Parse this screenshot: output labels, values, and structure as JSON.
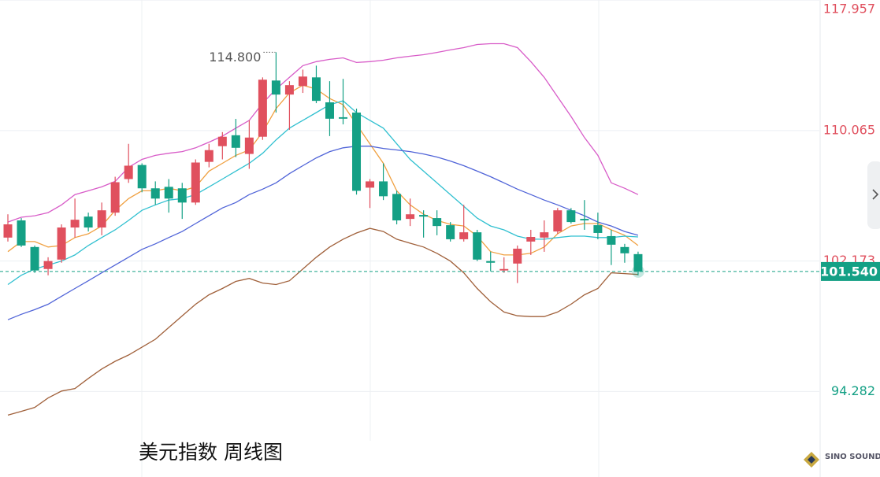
{
  "chart_data": {
    "type": "candlestick",
    "title": "美元指数 周线图",
    "logo": "SINO SOUND",
    "up_color": "#e0505e",
    "down_color": "#14a085",
    "ylim": [
      89.11,
      117.96
    ],
    "yticks": [
      117.957,
      110.065,
      102.173,
      94.282
    ],
    "grid": true,
    "last_price": {
      "value": 101.54,
      "label": "101.540"
    },
    "high_marker": {
      "value": 114.8,
      "label": "114.800"
    },
    "open": [
      103.59,
      104.63,
      103.02,
      101.69,
      102.26,
      104.2,
      104.86,
      104.2,
      105.1,
      107.13,
      107.98,
      106.57,
      106.66,
      106.57,
      105.71,
      108.17,
      109.12,
      109.78,
      108.65,
      109.69,
      113.09,
      112.24,
      112.76,
      113.28,
      111.77,
      110.87,
      111.15,
      106.61,
      106.99,
      106.23,
      104.72,
      104.96,
      104.77,
      104.34,
      103.49,
      103.91,
      102.17,
      101.6,
      102.02,
      103.35,
      103.59,
      103.96,
      105.24,
      104.72,
      104.34,
      103.68,
      103.02,
      102.59
    ],
    "high": [
      105.0,
      104.77,
      103.11,
      102.4,
      104.39,
      105.95,
      105.1,
      105.71,
      107.27,
      109.26,
      108.08,
      106.99,
      107.13,
      106.9,
      108.32,
      109.26,
      109.97,
      110.77,
      110.68,
      113.28,
      114.8,
      113.05,
      113.75,
      113.99,
      113.05,
      113.19,
      111.39,
      107.13,
      108.08,
      106.42,
      105.95,
      105.24,
      105.24,
      104.53,
      105.57,
      104.06,
      102.74,
      102.4,
      103.11,
      104.06,
      104.63,
      105.38,
      105.38,
      105.86,
      105.1,
      104.06,
      103.21,
      102.74
    ],
    "low": [
      103.35,
      103.02,
      101.46,
      101.31,
      102.07,
      103.59,
      103.96,
      103.73,
      104.91,
      106.9,
      106.33,
      105.57,
      105.1,
      104.72,
      105.57,
      107.84,
      108.32,
      108.46,
      107.75,
      109.5,
      111.15,
      110.11,
      112.34,
      111.72,
      109.73,
      110.44,
      106.19,
      105.38,
      105.86,
      104.39,
      104.29,
      103.59,
      103.73,
      103.35,
      103.35,
      102.17,
      101.55,
      101.46,
      100.84,
      102.54,
      102.73,
      103.82,
      104.44,
      104.06,
      103.49,
      101.93,
      102.07,
      101.31
    ],
    "close": [
      104.39,
      103.11,
      101.6,
      102.17,
      104.2,
      104.67,
      104.2,
      105.24,
      106.94,
      107.94,
      106.57,
      105.95,
      105.95,
      105.71,
      108.13,
      108.88,
      109.69,
      109.02,
      109.64,
      113.14,
      112.24,
      112.81,
      113.33,
      111.86,
      110.78,
      110.78,
      106.42,
      106.99,
      106.09,
      104.63,
      105.0,
      104.86,
      104.29,
      103.49,
      103.91,
      102.26,
      102.07,
      101.69,
      102.92,
      103.63,
      103.91,
      105.24,
      104.53,
      104.63,
      103.87,
      103.16,
      102.64,
      101.54
    ],
    "series": [
      {
        "color": "#f0a040",
        "values": [
          102.74,
          103.35,
          103.35,
          103.02,
          103.11,
          103.59,
          103.82,
          104.29,
          105.24,
          105.95,
          106.42,
          106.42,
          106.57,
          106.42,
          106.66,
          107.61,
          108.08,
          108.56,
          108.89,
          109.97,
          111.39,
          112.34,
          112.81,
          112.57,
          112.0,
          111.63,
          110.44,
          109.26,
          108.08,
          106.42,
          105.57,
          105.0,
          104.63,
          104.39,
          104.29,
          103.68,
          102.74,
          102.54,
          102.54,
          102.64,
          103.02,
          103.82,
          104.29,
          104.44,
          104.44,
          104.06,
          103.73,
          103.11
        ]
      },
      {
        "color": "#30c0d0",
        "values": [
          100.75,
          101.31,
          101.69,
          101.93,
          102.17,
          102.54,
          103.11,
          103.59,
          104.06,
          104.63,
          105.24,
          105.57,
          105.86,
          105.95,
          106.19,
          106.66,
          107.13,
          107.61,
          108.08,
          108.69,
          109.5,
          110.21,
          110.68,
          111.15,
          111.63,
          111.86,
          111.15,
          110.68,
          110.21,
          109.26,
          108.32,
          107.61,
          106.9,
          106.19,
          105.48,
          104.77,
          104.29,
          104.06,
          103.68,
          103.49,
          103.49,
          103.59,
          103.68,
          103.68,
          103.59,
          103.59,
          103.68,
          103.63
        ]
      },
      {
        "color": "#5064d8",
        "values": [
          98.62,
          98.95,
          99.23,
          99.56,
          100.04,
          100.51,
          100.98,
          101.46,
          101.93,
          102.4,
          102.88,
          103.21,
          103.59,
          103.96,
          104.44,
          104.91,
          105.38,
          105.71,
          106.19,
          106.52,
          106.9,
          107.46,
          107.94,
          108.41,
          108.79,
          109.02,
          109.12,
          109.12,
          108.98,
          108.89,
          108.79,
          108.65,
          108.46,
          108.22,
          107.94,
          107.61,
          107.27,
          106.9,
          106.52,
          106.19,
          105.86,
          105.57,
          105.24,
          104.91,
          104.53,
          104.29,
          103.96,
          103.73
        ]
      },
      {
        "color": "#d85cc8",
        "values": [
          104.53,
          104.82,
          104.91,
          105.1,
          105.57,
          106.19,
          106.42,
          106.66,
          106.99,
          107.84,
          108.32,
          108.56,
          108.69,
          108.79,
          109.02,
          109.36,
          109.73,
          110.21,
          110.68,
          111.72,
          112.57,
          113.28,
          113.99,
          114.23,
          114.37,
          114.46,
          114.18,
          114.23,
          114.32,
          114.46,
          114.56,
          114.65,
          114.79,
          114.94,
          115.08,
          115.27,
          115.32,
          115.32,
          115.08,
          114.23,
          113.28,
          112.1,
          110.92,
          109.64,
          108.56,
          106.9,
          106.57,
          106.19
        ]
      },
      {
        "color": "#a0603a",
        "values": [
          92.85,
          93.08,
          93.32,
          93.89,
          94.31,
          94.46,
          95.07,
          95.64,
          96.11,
          96.49,
          96.96,
          97.44,
          98.15,
          98.86,
          99.56,
          100.13,
          100.51,
          100.94,
          101.12,
          100.84,
          100.75,
          100.98,
          101.69,
          102.4,
          103.02,
          103.49,
          103.87,
          104.15,
          103.96,
          103.49,
          103.25,
          103.02,
          102.64,
          102.17,
          101.46,
          100.51,
          99.71,
          99.09,
          98.86,
          98.81,
          98.81,
          99.09,
          99.56,
          100.13,
          100.51,
          101.46,
          101.41,
          101.36
        ]
      }
    ]
  }
}
